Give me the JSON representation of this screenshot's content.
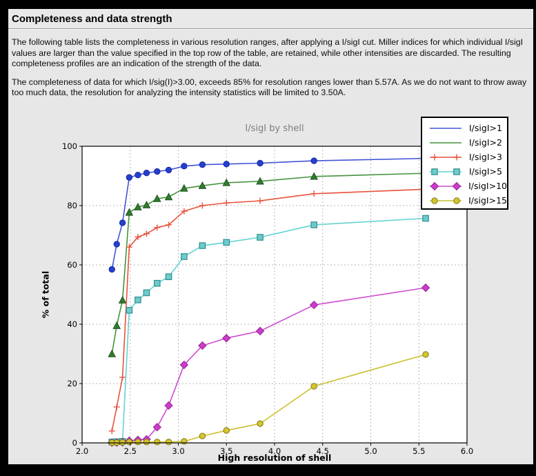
{
  "window": {
    "title": "Completeness and data strength",
    "paragraph1": "The following table lists the completeness in various resolution ranges, after applying a I/sigI cut. Miller indices for which individual I/sigI values are larger than the value specified in the top row of the table, are retained, while other intensities are discarded. The resulting completeness profiles are an indication of the strength of the data.",
    "paragraph2": "The completeness of data for which I/sig(I)>3.00, exceeds  85% for resolution ranges lower than 5.57A. As we do not want to throw away too much data, the resolution for analyzing the intensity statistics will be limited to 3.50A."
  },
  "colors": {
    "page_bg": "#000000",
    "window_bg": "#e8e8e8",
    "plot_bg": "#ffffff",
    "grid": "#b4b4b4",
    "chart_title": "#7d7d7d"
  },
  "chart_data": {
    "type": "line",
    "title": "I/sigI by shell",
    "xlabel": "High resolution of shell",
    "ylabel": "% of total",
    "xlim": [
      2.0,
      6.0
    ],
    "ylim": [
      0,
      100
    ],
    "xticks": [
      2.0,
      2.5,
      3.0,
      3.5,
      4.0,
      4.5,
      5.0,
      5.5,
      6.0
    ],
    "yticks": [
      0,
      20,
      40,
      60,
      80,
      100
    ],
    "grid": true,
    "legend_position": "top-right",
    "x": [
      2.31,
      2.36,
      2.42,
      2.49,
      2.58,
      2.67,
      2.78,
      2.9,
      3.06,
      3.25,
      3.5,
      3.85,
      4.41,
      5.57
    ],
    "series": [
      {
        "name": "I/sigI>1",
        "marker": "circle",
        "legend_marker": false,
        "line_color": "#4153d6",
        "fill": "#2440cf",
        "edge": "#18279e",
        "values": [
          58.5,
          67.0,
          74.2,
          89.5,
          90.3,
          91.0,
          91.5,
          92.0,
          93.3,
          93.8,
          94.0,
          94.3,
          95.1,
          95.9
        ]
      },
      {
        "name": "I/sigI>2",
        "marker": "triangle",
        "legend_marker": false,
        "line_color": "#44923c",
        "fill": "#2f7d2f",
        "edge": "#205420",
        "values": [
          30.0,
          39.5,
          48.1,
          77.7,
          79.5,
          80.2,
          82.3,
          82.9,
          85.8,
          86.7,
          87.7,
          88.2,
          89.8,
          90.9
        ]
      },
      {
        "name": "I/sigI>3",
        "marker": "plus",
        "legend_marker": true,
        "line_color": "#e9503a",
        "fill": "#e9503a",
        "edge": "#e9503a",
        "values": [
          4.0,
          12.1,
          22.1,
          66.0,
          69.4,
          70.5,
          72.6,
          73.5,
          78.1,
          80.0,
          80.9,
          81.6,
          84.0,
          85.5
        ]
      },
      {
        "name": "I/sigI>5",
        "marker": "square",
        "legend_marker": true,
        "line_color": "#62d2d2",
        "fill": "#6fcaca",
        "edge": "#2d8e8e",
        "values": [
          0.3,
          0.4,
          0.5,
          44.7,
          48.2,
          50.6,
          53.8,
          56.0,
          62.8,
          66.5,
          67.6,
          69.3,
          73.5,
          75.7
        ]
      },
      {
        "name": "I/sigI>10",
        "marker": "diamond",
        "legend_marker": true,
        "line_color": "#cf4ad0",
        "fill": "#cb3ccb",
        "edge": "#93248f",
        "values": [
          0.1,
          0.1,
          0.2,
          0.7,
          1.0,
          1.2,
          5.3,
          12.6,
          26.3,
          32.8,
          35.3,
          37.7,
          46.5,
          52.3
        ]
      },
      {
        "name": "I/sigI>15",
        "marker": "circle",
        "legend_marker": true,
        "line_color": "#ccbe2b",
        "fill": "#d3c52f",
        "edge": "#867712",
        "values": [
          0.1,
          0.1,
          0.2,
          0.3,
          0.3,
          0.3,
          0.3,
          0.3,
          0.5,
          2.3,
          4.2,
          6.5,
          19.1,
          29.8
        ]
      }
    ]
  }
}
